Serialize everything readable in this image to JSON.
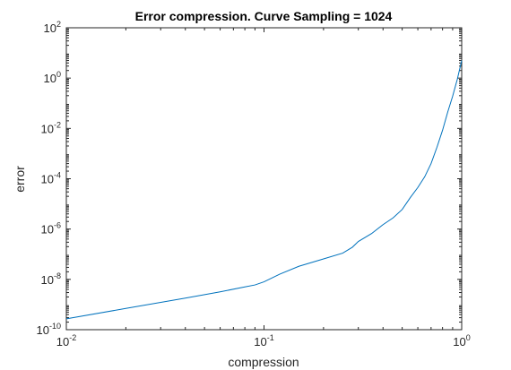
{
  "chart_data": {
    "type": "line",
    "title": "Error compression. Curve Sampling = 1024",
    "xlabel": "compression",
    "ylabel": "error",
    "xscale": "log",
    "yscale": "log",
    "xlim": [
      0.01,
      1
    ],
    "ylim": [
      1e-10,
      100
    ],
    "x_ticks": [
      {
        "base": "10",
        "exp": "-2",
        "value": 0.01
      },
      {
        "base": "10",
        "exp": "-1",
        "value": 0.1
      },
      {
        "base": "10",
        "exp": "0",
        "value": 1
      }
    ],
    "y_ticks": [
      {
        "base": "10",
        "exp": "-10",
        "value": 1e-10
      },
      {
        "base": "10",
        "exp": "-8",
        "value": 1e-08
      },
      {
        "base": "10",
        "exp": "-6",
        "value": 1e-06
      },
      {
        "base": "10",
        "exp": "-4",
        "value": 0.0001
      },
      {
        "base": "10",
        "exp": "-2",
        "value": 0.01
      },
      {
        "base": "10",
        "exp": "0",
        "value": 1
      },
      {
        "base": "10",
        "exp": "2",
        "value": 100
      }
    ],
    "grid": false,
    "box": true,
    "colors": {
      "line": "#0072BD",
      "axes": "#262626"
    },
    "series": [
      {
        "x": [
          0.01,
          0.02,
          0.04,
          0.06,
          0.08,
          0.09,
          0.1,
          0.12,
          0.15,
          0.2,
          0.25,
          0.28,
          0.3,
          0.35,
          0.4,
          0.45,
          0.5,
          0.55,
          0.6,
          0.65,
          0.7,
          0.75,
          0.8,
          0.85,
          0.9,
          0.95,
          1.0
        ],
        "y": [
          2.7e-10,
          7e-10,
          1.8e-09,
          3.2e-09,
          5e-09,
          6e-09,
          8e-09,
          1.6e-08,
          3.3e-08,
          6.5e-08,
          1.1e-07,
          1.9e-07,
          3.2e-07,
          6.6e-07,
          1.5e-06,
          2.8e-06,
          6e-06,
          1.8e-05,
          4.5e-05,
          0.00012,
          0.0004,
          0.0018,
          0.0084,
          0.045,
          0.19,
          0.9,
          5.0
        ]
      }
    ]
  }
}
